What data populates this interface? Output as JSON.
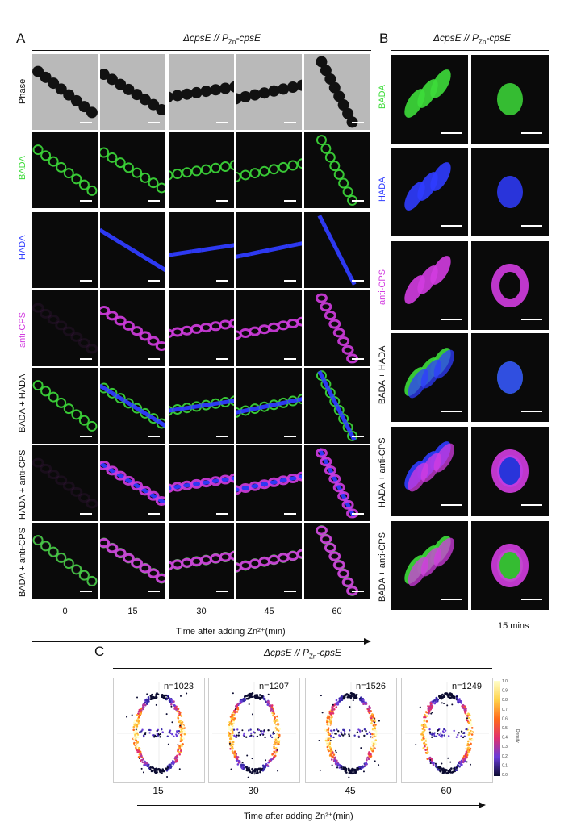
{
  "panel_a": {
    "letter": "A",
    "strain_prefix": "ΔcpsE // P",
    "strain_sub": "Zn",
    "strain_suffix": "-cpsE",
    "rows": [
      "Phase",
      "BADA",
      "HADA",
      "anti-CPS",
      "BADA + HADA",
      "HADA + anti-CPS",
      "BADA + anti-CPS"
    ],
    "timepoints": [
      "0",
      "15",
      "30",
      "45",
      "60"
    ],
    "axis_label": "Time after adding Zn²⁺(min)"
  },
  "panel_b": {
    "letter": "B",
    "strain_prefix": "ΔcpsE // P",
    "strain_sub": "Zn",
    "strain_suffix": "-cpsE",
    "rows": [
      "BADA",
      "HADA",
      "anti-CPS",
      "BADA + HADA",
      "HADA + anti-CPS",
      "BADA + anti-CPS"
    ],
    "caption": "15 mins"
  },
  "panel_c": {
    "letter": "C",
    "strain_prefix": "ΔcpsE // P",
    "strain_sub": "Zn",
    "strain_suffix": "-cpsE",
    "plots": [
      {
        "n": "n=1023",
        "time": "15"
      },
      {
        "n": "n=1207",
        "time": "30"
      },
      {
        "n": "n=1526",
        "time": "45"
      },
      {
        "n": "n=1249",
        "time": "60"
      }
    ],
    "axis_label": "Time after adding Zn²⁺(min)",
    "x_axis": "y",
    "y_axis": "x",
    "colorbar_label": "Density",
    "colorbar_ticks": [
      "1.0",
      "0.9",
      "0.8",
      "0.7",
      "0.6",
      "0.5",
      "0.4",
      "0.3",
      "0.2",
      "0.1",
      "0.0"
    ]
  },
  "colors": {
    "bada": "#3ddc3a",
    "hada": "#2f3cff",
    "anti_cps": "#d23ce0",
    "phase_bg": "#b9b9b9"
  }
}
